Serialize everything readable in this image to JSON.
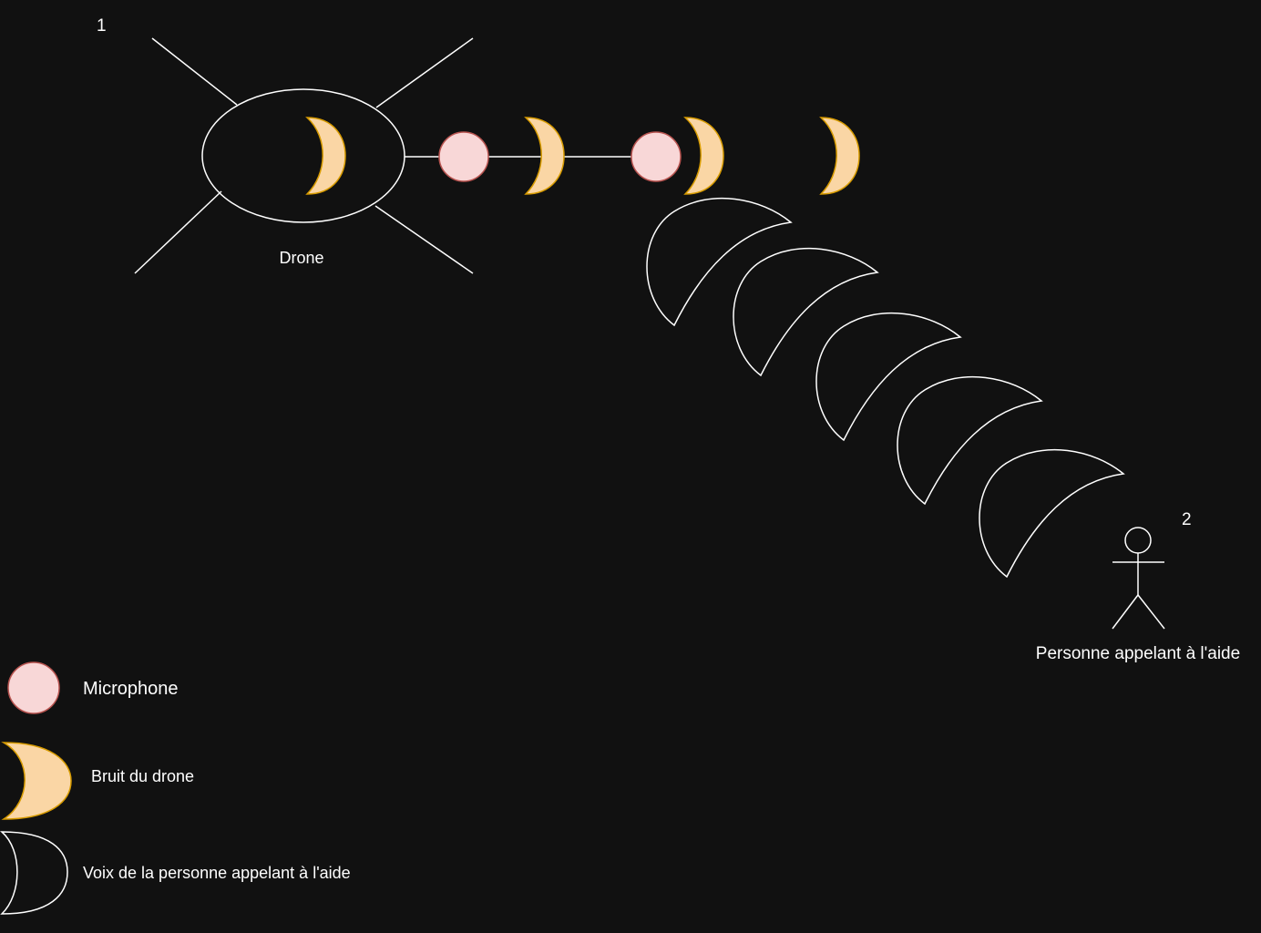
{
  "diagram": {
    "step_1": "1",
    "step_2": "2",
    "drone_label": "Drone",
    "person_label": "Personne appelant à l'aide"
  },
  "legend": {
    "microphone": "Microphone",
    "drone_noise": "Bruit du drone",
    "voice": "Voix de la personne appelant à l'aide"
  },
  "colors": {
    "background": "#111111",
    "microphone_fill": "#f8d7d7",
    "microphone_stroke": "#b85450",
    "noise_fill": "#fad6a5",
    "noise_stroke": "#d79b00",
    "line": "#ffffff"
  },
  "icons": {
    "drone": "drone-icon",
    "microphone": "microphone-icon",
    "drone_noise": "drone-noise-wave-icon",
    "voice": "voice-wave-icon",
    "person": "person-icon"
  }
}
